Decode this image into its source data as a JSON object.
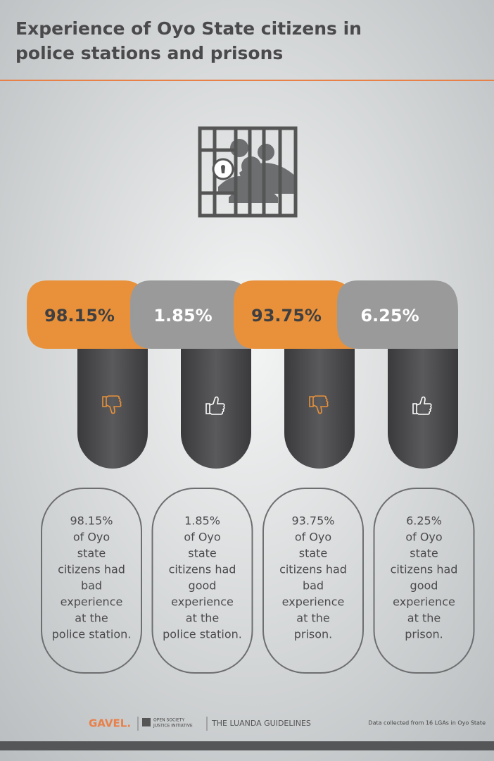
{
  "header": {
    "title_lines": [
      "Experience of Oyo State citizens in",
      "police stations and prisons"
    ]
  },
  "items": [
    {
      "label": "98.15%",
      "color": "#e8913a",
      "icon": "thumbs-down",
      "lines": [
        "98.15%",
        "of Oyo",
        "state",
        "citizens had",
        "bad",
        "experience",
        "at the",
        "police station."
      ]
    },
    {
      "label": "1.85%",
      "color": "#9a9a9a",
      "icon": "thumbs-up",
      "lines": [
        "1.85%",
        "of Oyo",
        "state",
        "citizens had",
        "good",
        "experience",
        "at the",
        "police station."
      ]
    },
    {
      "label": "93.75%",
      "color": "#e8913a",
      "icon": "thumbs-down",
      "lines": [
        "93.75%",
        "of Oyo",
        "state",
        "citizens had",
        "bad",
        "experience",
        "at the",
        "prison."
      ]
    },
    {
      "label": "6.25%",
      "color": "#9a9a9a",
      "icon": "thumbs-up",
      "lines": [
        "6.25%",
        "of Oyo",
        "state",
        "citizens had",
        "good",
        "experience",
        "at the",
        "prison."
      ]
    }
  ],
  "footer": {
    "brand": "GAVEL.",
    "partner_lines": [
      "OPEN SOCIETY",
      "JUSTICE INITIATIVE"
    ],
    "guidelines": "THE LUANDA GUIDELINES",
    "note": "Data collected from 16 LGAs in Oyo State"
  }
}
